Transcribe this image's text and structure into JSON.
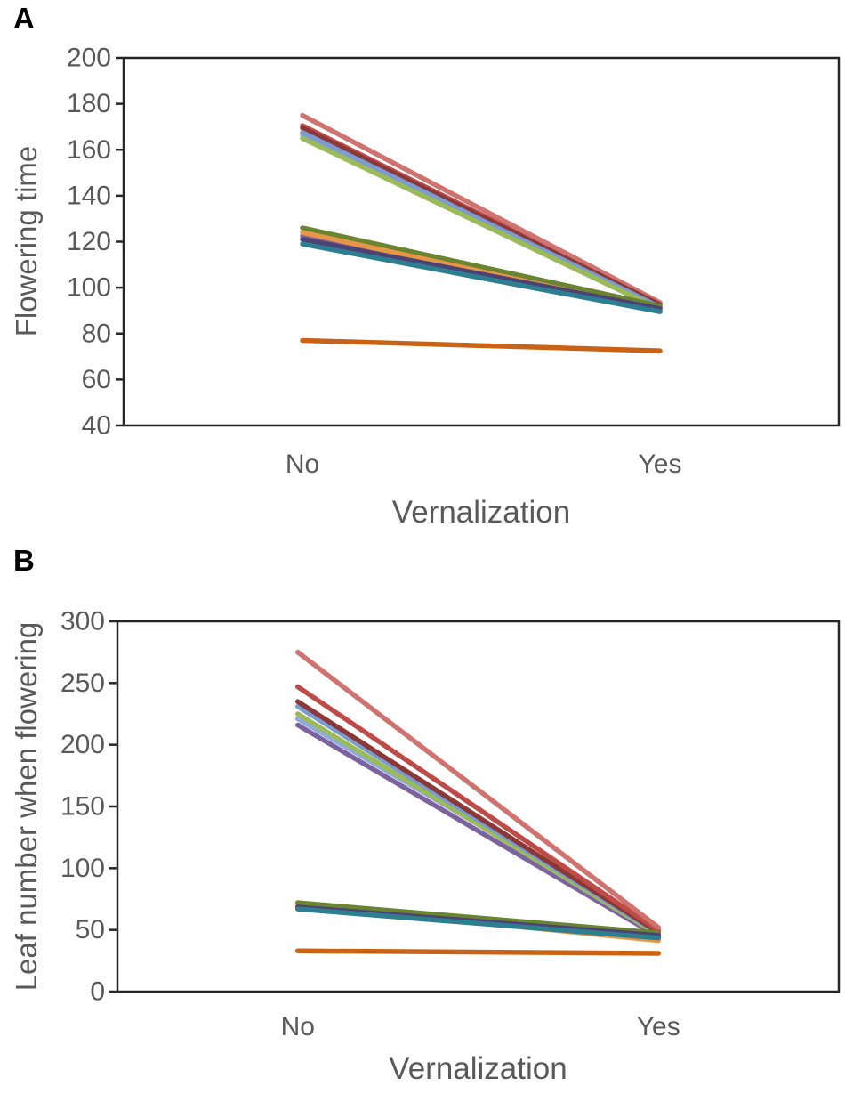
{
  "page": {
    "background": "#ffffff"
  },
  "panels": [
    {
      "label": "A"
    },
    {
      "label": "B"
    }
  ],
  "text_colors": {
    "axis_text": "#595959",
    "axis_line": "#262626",
    "panel_letter": "#000000"
  },
  "chart_data": [
    {
      "type": "line",
      "panel": "A",
      "xlabel": "Vernalization",
      "ylabel": "Flowering time",
      "categories": [
        "No",
        "Yes"
      ],
      "ylim": [
        40,
        200
      ],
      "yticks": [
        200,
        180,
        160,
        140,
        120,
        100,
        80,
        60,
        40
      ],
      "grid": false,
      "legend": "none",
      "series": [
        {
          "name": "light-blue",
          "color": "#8FAADC",
          "values": [
            166.5,
            91.0
          ]
        },
        {
          "name": "purple",
          "color": "#7D62A0",
          "values": [
            122.5,
            91.5
          ]
        },
        {
          "name": "red",
          "color": "#BE4B48",
          "values": [
            170.5,
            93.0
          ]
        },
        {
          "name": "salmon",
          "color": "#CE7370",
          "values": [
            175.0,
            93.5
          ]
        },
        {
          "name": "dark-red",
          "color": "#8C3836",
          "values": [
            169.5,
            92.5
          ]
        },
        {
          "name": "blue",
          "color": "#7B9BD2",
          "values": [
            167.5,
            91.5
          ]
        },
        {
          "name": "yellow-green",
          "color": "#9BBB59",
          "values": [
            165.0,
            90.5
          ]
        },
        {
          "name": "olive",
          "color": "#6A8531",
          "values": [
            126.0,
            92.0
          ]
        },
        {
          "name": "orange",
          "color": "#E79646",
          "values": [
            124.0,
            90.0
          ]
        },
        {
          "name": "dark-purple",
          "color": "#4D4272",
          "values": [
            121.0,
            90.8
          ]
        },
        {
          "name": "teal",
          "color": "#2E7E92",
          "values": [
            119.0,
            89.5
          ]
        },
        {
          "name": "dark-orange",
          "color": "#C96214",
          "values": [
            77.0,
            72.5
          ]
        }
      ]
    },
    {
      "type": "line",
      "panel": "B",
      "xlabel": "Vernalization",
      "ylabel": "Leaf number when flowering",
      "categories": [
        "No",
        "Yes"
      ],
      "ylim": [
        0,
        300
      ],
      "yticks": [
        300,
        250,
        200,
        150,
        100,
        50,
        0
      ],
      "grid": false,
      "legend": "none",
      "series": [
        {
          "name": "purple",
          "color": "#7D62A0",
          "values": [
            216.0,
            44.5
          ]
        },
        {
          "name": "light-blue",
          "color": "#8FAADC",
          "values": [
            221.0,
            50.0
          ]
        },
        {
          "name": "yellow-green",
          "color": "#9BBB59",
          "values": [
            225.0,
            46.0
          ]
        },
        {
          "name": "blue",
          "color": "#7B9BD2",
          "values": [
            231.0,
            47.0
          ]
        },
        {
          "name": "dark-red",
          "color": "#8C3836",
          "values": [
            235.0,
            48.0
          ]
        },
        {
          "name": "red",
          "color": "#BE4B48",
          "values": [
            247.0,
            49.5
          ]
        },
        {
          "name": "salmon",
          "color": "#CE7370",
          "values": [
            275.0,
            52.0
          ]
        },
        {
          "name": "orange",
          "color": "#E79646",
          "values": [
            70.0,
            41.5
          ]
        },
        {
          "name": "olive",
          "color": "#6A8531",
          "values": [
            72.0,
            47.5
          ]
        },
        {
          "name": "dark-purple",
          "color": "#4D4272",
          "values": [
            68.5,
            45.5
          ]
        },
        {
          "name": "teal",
          "color": "#2E7E92",
          "values": [
            67.0,
            43.5
          ]
        },
        {
          "name": "dark-orange",
          "color": "#C96214",
          "values": [
            33.0,
            31.0
          ]
        }
      ]
    }
  ]
}
